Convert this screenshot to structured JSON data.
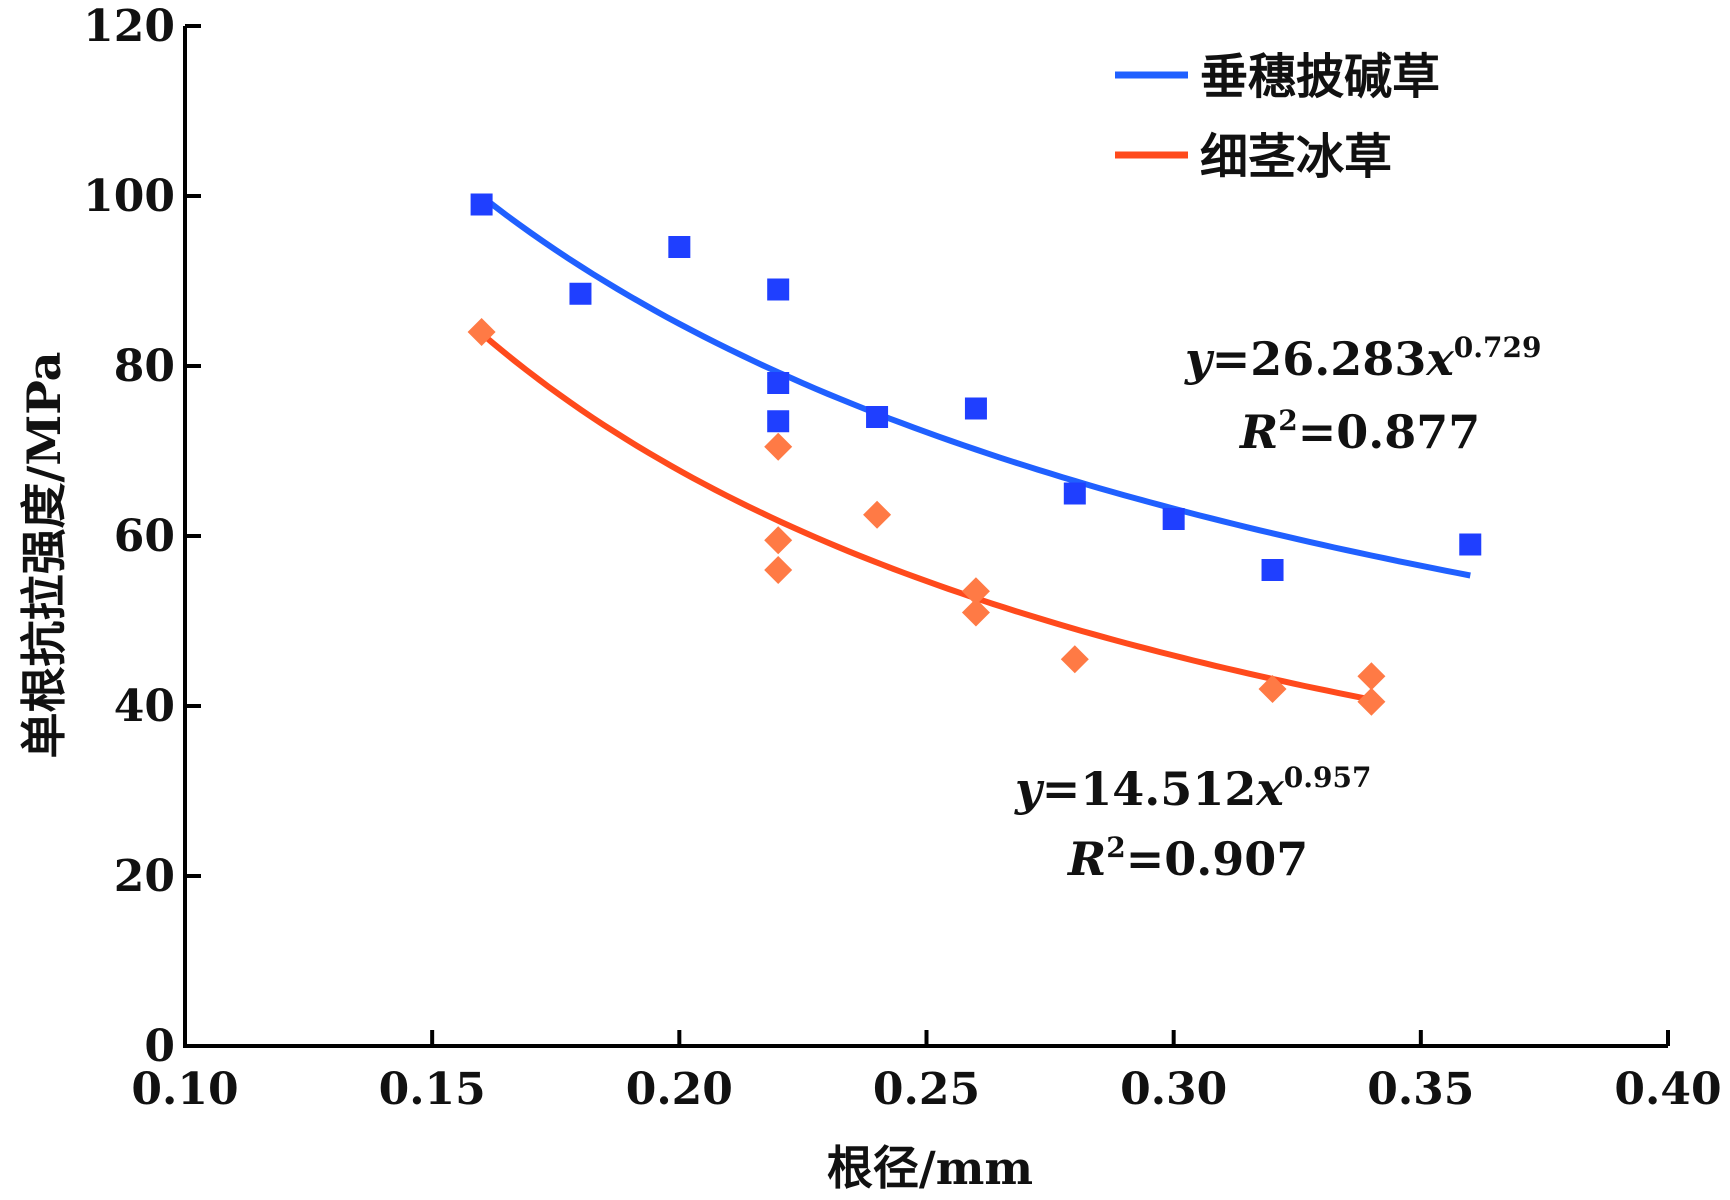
{
  "chart_data": {
    "type": "scatter",
    "xlabel": "根径/mm",
    "ylabel": "单根抗拉强度/MPa",
    "xlim": [
      0.1,
      0.4
    ],
    "ylim": [
      0,
      120
    ],
    "x_ticks": [
      "0.10",
      "0.15",
      "0.20",
      "0.25",
      "0.30",
      "0.35",
      "0.40"
    ],
    "y_ticks": [
      "0",
      "20",
      "40",
      "60",
      "80",
      "100",
      "120"
    ],
    "grid": false,
    "legend_position": "top-right",
    "series": [
      {
        "name": "垂穗披碱草",
        "color": "#1f3fff",
        "line_color": "#2060ff",
        "marker": "square",
        "points": [
          [
            0.16,
            99
          ],
          [
            0.18,
            88.5
          ],
          [
            0.2,
            94
          ],
          [
            0.22,
            89
          ],
          [
            0.22,
            78
          ],
          [
            0.22,
            73.5
          ],
          [
            0.24,
            74
          ],
          [
            0.26,
            75
          ],
          [
            0.28,
            65
          ],
          [
            0.3,
            62
          ],
          [
            0.32,
            56
          ],
          [
            0.36,
            59
          ]
        ],
        "fit": {
          "coef": 26.283,
          "exp": 0.729,
          "x_range": [
            0.16,
            0.36
          ]
        },
        "equation": {
          "y_part": "y",
          "rhs": "=26.283",
          "x_part": "x",
          "exponent": "0.729",
          "r_part": "R",
          "r_sup": "2",
          "r_value": "=0.877"
        }
      },
      {
        "name": "细茎冰草",
        "color": "#ff7a45",
        "line_color": "#ff4a1c",
        "marker": "diamond",
        "points": [
          [
            0.16,
            84
          ],
          [
            0.22,
            70.5
          ],
          [
            0.22,
            59.5
          ],
          [
            0.22,
            56
          ],
          [
            0.24,
            62.5
          ],
          [
            0.26,
            53.5
          ],
          [
            0.26,
            51
          ],
          [
            0.28,
            45.5
          ],
          [
            0.32,
            42
          ],
          [
            0.34,
            43.5
          ],
          [
            0.34,
            40.5
          ]
        ],
        "fit": {
          "coef": 14.512,
          "exp": 0.957,
          "x_range": [
            0.16,
            0.34
          ]
        },
        "equation": {
          "y_part": "y",
          "rhs": "=14.512",
          "x_part": "x",
          "exponent": "0.957",
          "r_part": "R",
          "r_sup": "2",
          "r_value": "=0.907"
        }
      }
    ]
  }
}
